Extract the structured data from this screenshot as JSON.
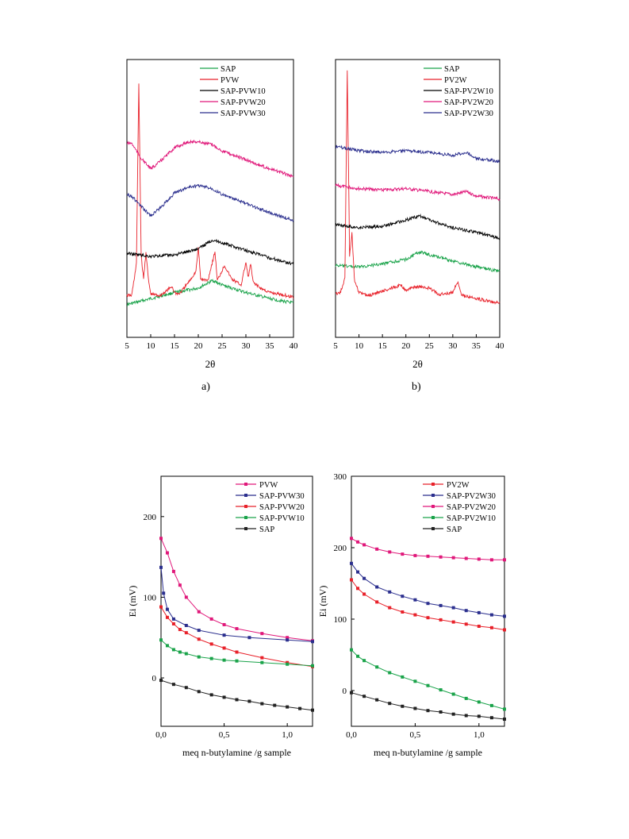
{
  "chart_data": [
    {
      "type": "line",
      "panel_label": "a)",
      "xlabel": "2θ",
      "ylabel": "",
      "xlim": [
        5,
        40
      ],
      "xticks": [
        "5",
        "10",
        "15",
        "20",
        "25",
        "30",
        "35",
        "40"
      ],
      "legend_position": "top-right",
      "series": [
        {
          "name": "SAP",
          "color": "#1aa34a",
          "x": [
            5,
            10,
            15,
            20,
            23,
            25,
            30,
            35,
            40
          ],
          "y": [
            -0.2,
            0.2,
            0.6,
            0.9,
            1.4,
            1.1,
            0.6,
            0.2,
            -0.1
          ]
        },
        {
          "name": "PVW",
          "color": "#e8212a",
          "x": [
            5,
            6,
            7,
            7.5,
            8,
            8.5,
            9,
            9.5,
            10,
            12,
            14.5,
            15,
            16,
            18,
            19.5,
            20,
            20.5,
            22,
            23.5,
            24,
            25.5,
            27,
            29,
            30,
            30.5,
            31,
            31.5,
            33,
            35,
            37,
            40
          ],
          "y": [
            0.4,
            0.4,
            2.5,
            14.5,
            3,
            1.5,
            3.3,
            1.5,
            0.5,
            0.4,
            1.0,
            0.6,
            0.5,
            1.3,
            2.0,
            3.6,
            1.5,
            1.4,
            3.3,
            1.4,
            2.4,
            1.5,
            1.1,
            2.6,
            1.6,
            2.5,
            1.3,
            0.9,
            0.6,
            0.5,
            0.3
          ]
        },
        {
          "name": "SAP-PVW10",
          "color": "#000000",
          "x": [
            5,
            10,
            15,
            20,
            23,
            25,
            30,
            35,
            40
          ],
          "y": [
            3.2,
            3.0,
            3.1,
            3.5,
            4.1,
            3.9,
            3.4,
            2.9,
            2.5
          ]
        },
        {
          "name": "SAP-PVW20",
          "color": "#e0187a",
          "x": [
            5,
            6,
            8,
            10,
            12,
            15,
            18,
            20,
            23,
            25,
            30,
            35,
            40
          ],
          "y": [
            10.5,
            10.5,
            9.5,
            8.8,
            9.3,
            10.2,
            10.6,
            10.6,
            10.4,
            10.0,
            9.4,
            8.8,
            8.3
          ]
        },
        {
          "name": "SAP-PVW30",
          "color": "#2b2f8e",
          "x": [
            5,
            6,
            8,
            10,
            12,
            15,
            18,
            20,
            23,
            25,
            30,
            35,
            40
          ],
          "y": [
            7.1,
            7.0,
            6.3,
            5.7,
            6.2,
            7.2,
            7.6,
            7.7,
            7.5,
            7.1,
            6.5,
            5.9,
            5.4
          ]
        }
      ]
    },
    {
      "type": "line",
      "panel_label": "b)",
      "xlabel": "2θ",
      "ylabel": "",
      "xlim": [
        5,
        40
      ],
      "xticks": [
        "5",
        "10",
        "15",
        "20",
        "25",
        "30",
        "35",
        "40"
      ],
      "legend_position": "top-right",
      "series": [
        {
          "name": "SAP",
          "color": "#1aa34a",
          "x": [
            5,
            10,
            15,
            20,
            23,
            25,
            30,
            35,
            40
          ],
          "y": [
            2.4,
            2.3,
            2.5,
            2.8,
            3.3,
            3.1,
            2.7,
            2.3,
            2.0
          ]
        },
        {
          "name": "PV2W",
          "color": "#e8212a",
          "x": [
            5,
            6,
            7,
            7.5,
            8,
            8.5,
            9,
            9.5,
            10,
            12,
            15,
            19,
            20,
            22,
            25,
            27,
            30,
            31,
            32,
            35,
            40
          ],
          "y": [
            0.5,
            0.6,
            1.5,
            15.3,
            3.0,
            4.6,
            1.5,
            1.0,
            0.6,
            0.4,
            0.7,
            1.1,
            0.7,
            1.0,
            0.9,
            0.5,
            0.6,
            1.3,
            0.4,
            0.2,
            -0.1
          ]
        },
        {
          "name": "SAP-PV2W10",
          "color": "#000000",
          "x": [
            5,
            10,
            15,
            20,
            23,
            25,
            30,
            35,
            40
          ],
          "y": [
            5.1,
            4.9,
            5.0,
            5.4,
            5.7,
            5.4,
            4.9,
            4.6,
            4.2
          ]
        },
        {
          "name": "SAP-PV2W20",
          "color": "#e0187a",
          "x": [
            5,
            10,
            15,
            20,
            25,
            30,
            33,
            35,
            40
          ],
          "y": [
            7.7,
            7.5,
            7.4,
            7.5,
            7.3,
            7.1,
            7.3,
            7.0,
            6.8
          ]
        },
        {
          "name": "SAP-PV2W30",
          "color": "#2b2f8e",
          "x": [
            5,
            10,
            15,
            20,
            25,
            30,
            33,
            35,
            40
          ],
          "y": [
            10.3,
            10.0,
            9.9,
            10.0,
            9.9,
            9.7,
            9.9,
            9.5,
            9.3
          ]
        }
      ]
    },
    {
      "type": "line",
      "panel_label": "",
      "xlabel": "meq n-butylamine /g sample",
      "ylabel": "Ei (mV)",
      "xlim": [
        0,
        1.2
      ],
      "ylim": [
        -60,
        250
      ],
      "xticks": [
        "0,0",
        "0,5",
        "1,0"
      ],
      "yticks": [
        "0",
        "100",
        "200"
      ],
      "legend_position": "top-right",
      "series": [
        {
          "name": "PVW",
          "color": "#e0187a",
          "x": [
            0,
            0.05,
            0.1,
            0.15,
            0.2,
            0.3,
            0.4,
            0.5,
            0.6,
            0.8,
            1.0,
            1.2
          ],
          "y": [
            173,
            155,
            132,
            115,
            100,
            82,
            73,
            66,
            61,
            55,
            50,
            46
          ]
        },
        {
          "name": "SAP-PVW30",
          "color": "#2b2f8e",
          "x": [
            0,
            0.02,
            0.05,
            0.1,
            0.2,
            0.3,
            0.5,
            0.7,
            1.0,
            1.2
          ],
          "y": [
            137,
            105,
            85,
            73,
            65,
            59,
            53,
            50,
            47,
            45
          ]
        },
        {
          "name": "SAP-PVW20",
          "color": "#e8212a",
          "x": [
            0,
            0.05,
            0.1,
            0.15,
            0.2,
            0.3,
            0.4,
            0.5,
            0.6,
            0.8,
            1.0,
            1.2
          ],
          "y": [
            88,
            75,
            67,
            60,
            56,
            48,
            42,
            37,
            32,
            25,
            19,
            14
          ]
        },
        {
          "name": "SAP-PVW10",
          "color": "#1aa34a",
          "x": [
            0,
            0.05,
            0.1,
            0.15,
            0.2,
            0.3,
            0.4,
            0.5,
            0.6,
            0.8,
            1.0,
            1.2
          ],
          "y": [
            47,
            40,
            35,
            32,
            30,
            26,
            24,
            22,
            21,
            19,
            17,
            15
          ]
        },
        {
          "name": "SAP",
          "color": "#222222",
          "x": [
            0,
            0.1,
            0.2,
            0.3,
            0.4,
            0.5,
            0.6,
            0.7,
            0.8,
            0.9,
            1.0,
            1.1,
            1.2
          ],
          "y": [
            -3,
            -8,
            -12,
            -17,
            -21,
            -24,
            -27,
            -29,
            -32,
            -34,
            -36,
            -38,
            -40
          ]
        }
      ]
    },
    {
      "type": "line",
      "panel_label": "",
      "xlabel": "meq n-butylamine /g sample",
      "ylabel": "Ei (mV)",
      "xlim": [
        0,
        1.2
      ],
      "ylim": [
        -50,
        300
      ],
      "xticks": [
        "0,0",
        "0,5",
        "1,0"
      ],
      "yticks": [
        "0",
        "100",
        "200",
        "300"
      ],
      "legend_position": "top-right",
      "series": [
        {
          "name": "PV2W",
          "color": "#e8212a",
          "x": [
            0,
            0.05,
            0.1,
            0.2,
            0.3,
            0.4,
            0.5,
            0.6,
            0.7,
            0.8,
            0.9,
            1.0,
            1.1,
            1.2
          ],
          "y": [
            155,
            143,
            135,
            124,
            116,
            110,
            106,
            102,
            99,
            96,
            93,
            90,
            88,
            85
          ]
        },
        {
          "name": "SAP-PV2W30",
          "color": "#2b2f8e",
          "x": [
            0,
            0.05,
            0.1,
            0.2,
            0.3,
            0.4,
            0.5,
            0.6,
            0.7,
            0.8,
            0.9,
            1.0,
            1.1,
            1.2
          ],
          "y": [
            178,
            166,
            157,
            145,
            138,
            132,
            127,
            122,
            119,
            116,
            112,
            109,
            106,
            104
          ]
        },
        {
          "name": "SAP-PV2W20",
          "color": "#e0187a",
          "x": [
            0,
            0.05,
            0.1,
            0.2,
            0.3,
            0.4,
            0.5,
            0.6,
            0.7,
            0.8,
            0.9,
            1.0,
            1.1,
            1.2
          ],
          "y": [
            213,
            208,
            204,
            198,
            194,
            191,
            189,
            188,
            187,
            186,
            185,
            184,
            183,
            183
          ]
        },
        {
          "name": "SAP-PV2W10",
          "color": "#1aa34a",
          "x": [
            0,
            0.05,
            0.1,
            0.2,
            0.3,
            0.4,
            0.5,
            0.6,
            0.7,
            0.8,
            0.9,
            1.0,
            1.1,
            1.2
          ],
          "y": [
            57,
            48,
            42,
            33,
            25,
            19,
            13,
            7,
            1,
            -5,
            -11,
            -16,
            -21,
            -26
          ]
        },
        {
          "name": "SAP",
          "color": "#222222",
          "x": [
            0,
            0.1,
            0.2,
            0.3,
            0.4,
            0.5,
            0.6,
            0.7,
            0.8,
            0.9,
            1.0,
            1.1,
            1.2
          ],
          "y": [
            -3,
            -8,
            -13,
            -18,
            -22,
            -25,
            -28,
            -30,
            -33,
            -35,
            -36,
            -38,
            -40
          ]
        }
      ]
    }
  ]
}
